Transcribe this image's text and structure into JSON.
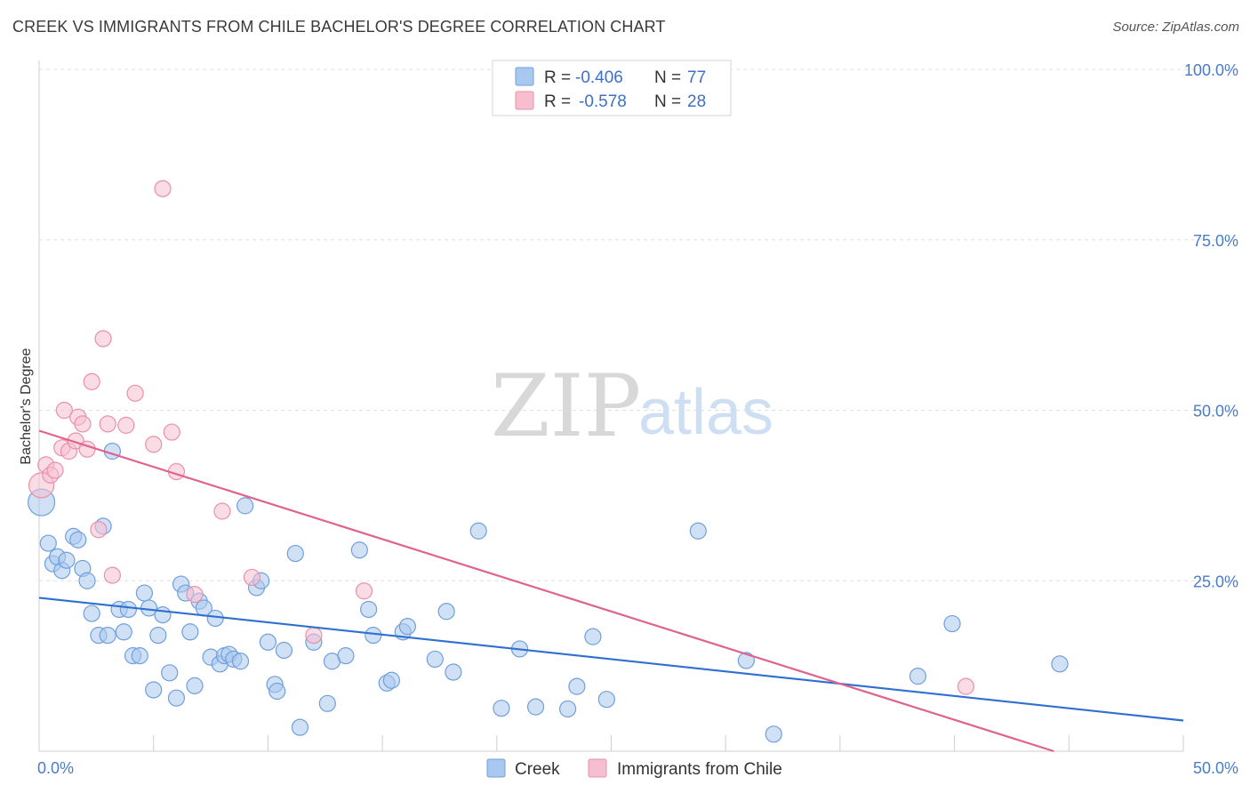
{
  "title": "CREEK VS IMMIGRANTS FROM CHILE BACHELOR'S DEGREE CORRELATION CHART",
  "source": "Source: ZipAtlas.com",
  "watermark": {
    "zip": "ZIP",
    "atlas": "atlas"
  },
  "colors": {
    "creek_fill": "#a9c8ef",
    "creek_stroke": "#6f9fdc",
    "creek_line": "#2f6fd0",
    "chile_fill": "#f6bfd0",
    "chile_stroke": "#ea8fac",
    "chile_line": "#e0628e",
    "grid": "#e0e0e0",
    "tick_label": "#4a7cc9"
  },
  "legend": {
    "rows": [
      {
        "r_label": "R =",
        "r_value": "-0.406",
        "n_label": "N =",
        "n_value": "77"
      },
      {
        "r_label": "R =",
        "r_value": "-0.578",
        "n_label": "N =",
        "n_value": "28"
      }
    ]
  },
  "chart_data": {
    "type": "scatter",
    "title": "CREEK VS IMMIGRANTS FROM CHILE BACHELOR'S DEGREE CORRELATION CHART",
    "xlabel": "",
    "ylabel": "Bachelor's Degree",
    "xlim": [
      0,
      50
    ],
    "ylim": [
      0,
      100
    ],
    "x_tick_labels": [
      "0.0%",
      "50.0%"
    ],
    "y_tick_labels": [
      "100.0%",
      "75.0%",
      "50.0%",
      "25.0%"
    ],
    "y_ticks": [
      100,
      75,
      50,
      25
    ],
    "grid": true,
    "legend_position": "top-center",
    "series": [
      {
        "name": "Creek",
        "trendline": {
          "x": [
            0,
            50
          ],
          "y": [
            22.5,
            4.5
          ]
        },
        "points": [
          [
            0.1,
            36.5
          ],
          [
            0.4,
            30.5
          ],
          [
            0.6,
            27.5
          ],
          [
            0.8,
            28.5
          ],
          [
            1.0,
            26.5
          ],
          [
            1.2,
            28.0
          ],
          [
            1.5,
            31.5
          ],
          [
            1.7,
            31.0
          ],
          [
            1.9,
            26.8
          ],
          [
            2.1,
            25.0
          ],
          [
            2.3,
            20.2
          ],
          [
            2.6,
            17.0
          ],
          [
            2.8,
            33.0
          ],
          [
            3.0,
            17.0
          ],
          [
            3.2,
            44.0
          ],
          [
            3.5,
            20.8
          ],
          [
            3.7,
            17.5
          ],
          [
            3.9,
            20.8
          ],
          [
            4.1,
            14.0
          ],
          [
            4.4,
            14.0
          ],
          [
            4.6,
            23.2
          ],
          [
            4.8,
            21.0
          ],
          [
            5.0,
            9.0
          ],
          [
            5.2,
            17.0
          ],
          [
            5.4,
            20.0
          ],
          [
            5.7,
            11.5
          ],
          [
            6.0,
            7.8
          ],
          [
            6.2,
            24.5
          ],
          [
            6.4,
            23.2
          ],
          [
            6.6,
            17.5
          ],
          [
            6.8,
            9.6
          ],
          [
            7.0,
            22.0
          ],
          [
            7.2,
            21.0
          ],
          [
            7.5,
            13.8
          ],
          [
            7.7,
            19.5
          ],
          [
            7.9,
            12.8
          ],
          [
            8.1,
            14.0
          ],
          [
            8.3,
            14.2
          ],
          [
            8.5,
            13.5
          ],
          [
            8.8,
            13.2
          ],
          [
            9.0,
            36.0
          ],
          [
            9.5,
            24.0
          ],
          [
            9.7,
            25.0
          ],
          [
            10.0,
            16.0
          ],
          [
            10.3,
            9.8
          ],
          [
            10.4,
            8.8
          ],
          [
            10.7,
            14.8
          ],
          [
            11.2,
            29.0
          ],
          [
            11.4,
            3.5
          ],
          [
            12.0,
            16.0
          ],
          [
            12.6,
            7.0
          ],
          [
            12.8,
            13.2
          ],
          [
            13.4,
            14.0
          ],
          [
            14.0,
            29.5
          ],
          [
            14.4,
            20.8
          ],
          [
            14.6,
            17.0
          ],
          [
            15.2,
            10.0
          ],
          [
            15.4,
            10.4
          ],
          [
            15.9,
            17.5
          ],
          [
            16.1,
            18.3
          ],
          [
            17.3,
            13.5
          ],
          [
            17.8,
            20.5
          ],
          [
            18.1,
            11.6
          ],
          [
            19.2,
            32.3
          ],
          [
            20.2,
            6.3
          ],
          [
            21.0,
            15.0
          ],
          [
            21.7,
            6.5
          ],
          [
            23.1,
            6.2
          ],
          [
            23.5,
            9.5
          ],
          [
            24.2,
            16.8
          ],
          [
            24.8,
            7.6
          ],
          [
            28.8,
            32.3
          ],
          [
            30.9,
            13.3
          ],
          [
            32.1,
            2.5
          ],
          [
            38.4,
            11.0
          ],
          [
            39.9,
            18.7
          ],
          [
            44.6,
            12.8
          ]
        ]
      },
      {
        "name": "Immigrants from Chile",
        "trendline": {
          "x": [
            0,
            50
          ],
          "y": [
            47.0,
            -6.0
          ]
        },
        "points": [
          [
            0.1,
            39.0
          ],
          [
            0.3,
            42.0
          ],
          [
            0.5,
            40.5
          ],
          [
            0.7,
            41.2
          ],
          [
            1.0,
            44.5
          ],
          [
            1.1,
            50.0
          ],
          [
            1.3,
            44.0
          ],
          [
            1.6,
            45.5
          ],
          [
            1.7,
            49.0
          ],
          [
            1.9,
            48.0
          ],
          [
            2.1,
            44.3
          ],
          [
            2.3,
            54.2
          ],
          [
            2.6,
            32.5
          ],
          [
            2.8,
            60.5
          ],
          [
            3.0,
            48.0
          ],
          [
            3.2,
            25.8
          ],
          [
            3.8,
            47.8
          ],
          [
            4.2,
            52.5
          ],
          [
            5.0,
            45.0
          ],
          [
            5.4,
            82.5
          ],
          [
            5.8,
            46.8
          ],
          [
            6.0,
            41.0
          ],
          [
            6.8,
            23.0
          ],
          [
            8.0,
            35.2
          ],
          [
            9.3,
            25.5
          ],
          [
            12.0,
            17.0
          ],
          [
            14.2,
            23.5
          ],
          [
            40.5,
            9.5
          ]
        ]
      }
    ]
  }
}
